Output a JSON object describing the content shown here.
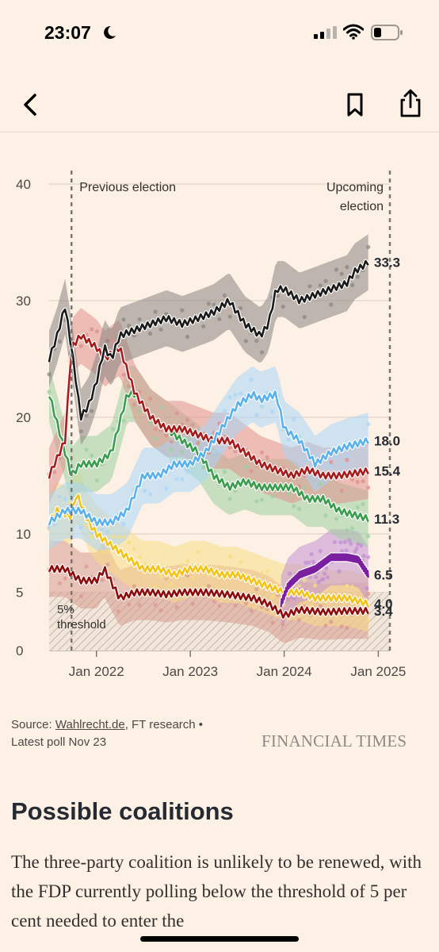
{
  "status_bar": {
    "time": "23:07"
  },
  "chart_data": {
    "type": "line",
    "y_ticks": [
      "0",
      "5",
      "10",
      "20",
      "30",
      "40"
    ],
    "y_tick_values": [
      0,
      5,
      10,
      20,
      30,
      40
    ],
    "ylim": [
      0,
      40
    ],
    "x_ticks": [
      "Jan 2022",
      "Jan 2023",
      "Jan 2024",
      "Jan 2025"
    ],
    "x_tick_dates": [
      "2022-01-01",
      "2023-01-01",
      "2024-01-01",
      "2025-01-01"
    ],
    "xlim": [
      "2021-07-01",
      "2025-02-15"
    ],
    "grid": true,
    "annotations": {
      "previous_election": "Previous election",
      "previous_election_date": "2021-09-26",
      "upcoming_election_line1": "Upcoming",
      "upcoming_election_line2": "election",
      "upcoming_election_date": "2025-02-23",
      "threshold_line1": "5%",
      "threshold_line2": "threshold",
      "threshold_value": 5
    },
    "series": [
      {
        "color": "#1a1a1a",
        "band": "#8a8580",
        "end_label": "33.3",
        "points": [
          [
            "2021-07-01",
            25
          ],
          [
            "2021-08-01",
            27
          ],
          [
            "2021-09-01",
            29.5
          ],
          [
            "2021-09-26",
            26
          ],
          [
            "2021-11-01",
            20
          ],
          [
            "2021-12-01",
            21
          ],
          [
            "2022-01-01",
            23
          ],
          [
            "2022-02-01",
            26
          ],
          [
            "2022-03-01",
            25
          ],
          [
            "2022-04-01",
            27
          ],
          [
            "2022-06-01",
            27.5
          ],
          [
            "2022-08-01",
            28
          ],
          [
            "2022-10-01",
            28.5
          ],
          [
            "2022-12-01",
            28
          ],
          [
            "2023-02-01",
            28.5
          ],
          [
            "2023-04-01",
            29
          ],
          [
            "2023-06-01",
            30
          ],
          [
            "2023-08-01",
            28
          ],
          [
            "2023-10-01",
            27
          ],
          [
            "2023-11-01",
            28
          ],
          [
            "2023-12-01",
            31
          ],
          [
            "2024-01-01",
            31
          ],
          [
            "2024-03-01",
            30
          ],
          [
            "2024-05-01",
            30.5
          ],
          [
            "2024-07-01",
            31
          ],
          [
            "2024-09-01",
            31.5
          ],
          [
            "2024-10-01",
            32.5
          ],
          [
            "2024-11-23",
            33.3
          ]
        ]
      },
      {
        "color": "#5ab1ec",
        "band": "#a9d6f5",
        "end_label": "18.0",
        "points": [
          [
            "2021-07-01",
            11
          ],
          [
            "2021-09-01",
            12
          ],
          [
            "2021-11-01",
            12
          ],
          [
            "2022-01-01",
            11
          ],
          [
            "2022-03-01",
            11
          ],
          [
            "2022-05-01",
            12
          ],
          [
            "2022-07-01",
            15
          ],
          [
            "2022-09-01",
            15
          ],
          [
            "2022-11-01",
            16
          ],
          [
            "2023-01-01",
            16
          ],
          [
            "2023-03-01",
            17
          ],
          [
            "2023-05-01",
            19
          ],
          [
            "2023-07-01",
            21
          ],
          [
            "2023-09-01",
            22
          ],
          [
            "2023-10-01",
            21.5
          ],
          [
            "2023-12-01",
            22
          ],
          [
            "2024-01-01",
            19
          ],
          [
            "2024-03-01",
            18
          ],
          [
            "2024-05-01",
            16
          ],
          [
            "2024-07-01",
            17
          ],
          [
            "2024-09-01",
            17.5
          ],
          [
            "2024-11-23",
            18.0
          ]
        ]
      },
      {
        "color": "#a61c1c",
        "band": "#df8f8c",
        "end_label": "15.4",
        "points": [
          [
            "2021-07-01",
            15
          ],
          [
            "2021-09-01",
            18
          ],
          [
            "2021-09-26",
            26
          ],
          [
            "2021-11-01",
            27
          ],
          [
            "2022-01-01",
            26
          ],
          [
            "2022-02-01",
            25
          ],
          [
            "2022-04-01",
            26
          ],
          [
            "2022-06-01",
            22
          ],
          [
            "2022-08-01",
            20
          ],
          [
            "2022-10-01",
            19
          ],
          [
            "2022-12-01",
            19
          ],
          [
            "2023-02-01",
            18.5
          ],
          [
            "2023-04-01",
            18
          ],
          [
            "2023-06-01",
            18
          ],
          [
            "2023-08-01",
            17
          ],
          [
            "2023-10-01",
            16
          ],
          [
            "2023-12-01",
            15.5
          ],
          [
            "2024-02-01",
            15
          ],
          [
            "2024-04-01",
            15.5
          ],
          [
            "2024-06-01",
            15
          ],
          [
            "2024-08-01",
            15
          ],
          [
            "2024-11-23",
            15.4
          ]
        ]
      },
      {
        "color": "#3a9d4e",
        "band": "#9ccf9f",
        "end_label": "11.3",
        "points": [
          [
            "2021-07-01",
            22
          ],
          [
            "2021-09-26",
            15
          ],
          [
            "2021-11-01",
            16
          ],
          [
            "2022-01-01",
            16
          ],
          [
            "2022-03-01",
            17
          ],
          [
            "2022-05-01",
            22
          ],
          [
            "2022-06-01",
            22
          ],
          [
            "2022-08-01",
            20
          ],
          [
            "2022-10-01",
            19
          ],
          [
            "2022-12-01",
            18
          ],
          [
            "2023-02-01",
            17
          ],
          [
            "2023-04-01",
            15
          ],
          [
            "2023-06-01",
            14
          ],
          [
            "2023-08-01",
            14.5
          ],
          [
            "2023-10-01",
            14
          ],
          [
            "2023-12-01",
            14
          ],
          [
            "2024-02-01",
            14
          ],
          [
            "2024-04-01",
            13
          ],
          [
            "2024-06-01",
            13
          ],
          [
            "2024-08-01",
            12
          ],
          [
            "2024-11-23",
            11.3
          ]
        ]
      },
      {
        "color": "#7a1fa0",
        "band": "#c28fd3",
        "end_label": "6.5",
        "points": [
          [
            "2023-12-20",
            4
          ],
          [
            "2024-01-15",
            5.5
          ],
          [
            "2024-03-01",
            6.5
          ],
          [
            "2024-05-01",
            7
          ],
          [
            "2024-07-01",
            8
          ],
          [
            "2024-09-01",
            8
          ],
          [
            "2024-10-15",
            7.8
          ],
          [
            "2024-11-23",
            6.5
          ]
        ]
      },
      {
        "color": "#f2c318",
        "band": "#f7dc85",
        "end_label": "4.0",
        "points": [
          [
            "2021-07-01",
            11
          ],
          [
            "2021-08-01",
            12
          ],
          [
            "2021-09-26",
            11.5
          ],
          [
            "2021-10-15",
            13.5
          ],
          [
            "2021-12-01",
            11
          ],
          [
            "2022-01-01",
            10
          ],
          [
            "2022-03-01",
            9
          ],
          [
            "2022-05-01",
            8
          ],
          [
            "2022-07-01",
            7
          ],
          [
            "2022-09-01",
            7
          ],
          [
            "2022-11-01",
            6.5
          ],
          [
            "2023-01-01",
            7
          ],
          [
            "2023-03-01",
            7
          ],
          [
            "2023-05-01",
            6.5
          ],
          [
            "2023-07-01",
            6.5
          ],
          [
            "2023-09-01",
            6
          ],
          [
            "2023-11-01",
            5.5
          ],
          [
            "2024-01-01",
            5
          ],
          [
            "2024-03-01",
            5
          ],
          [
            "2024-05-01",
            4.5
          ],
          [
            "2024-07-01",
            4.5
          ],
          [
            "2024-09-01",
            4.5
          ],
          [
            "2024-11-23",
            4.0
          ]
        ]
      },
      {
        "color": "#8c0d0d",
        "band": "#d99a8f",
        "end_label": "3.4",
        "points": [
          [
            "2021-07-01",
            7
          ],
          [
            "2021-09-01",
            7
          ],
          [
            "2021-11-01",
            6
          ],
          [
            "2022-01-01",
            6
          ],
          [
            "2022-02-01",
            7
          ],
          [
            "2022-04-01",
            4.5
          ],
          [
            "2022-06-01",
            5
          ],
          [
            "2022-08-01",
            5
          ],
          [
            "2022-10-01",
            4.8
          ],
          [
            "2022-12-01",
            5
          ],
          [
            "2023-03-01",
            5
          ],
          [
            "2023-06-01",
            4.8
          ],
          [
            "2023-09-01",
            4.5
          ],
          [
            "2023-11-01",
            4
          ],
          [
            "2024-01-01",
            3
          ],
          [
            "2024-03-01",
            3.5
          ],
          [
            "2024-06-01",
            3.3
          ],
          [
            "2024-09-01",
            3.4
          ],
          [
            "2024-11-23",
            3.4
          ]
        ]
      }
    ]
  },
  "source": {
    "prefix": "Source: ",
    "link": "Wahlrecht.de",
    "suffix": ", FT research •",
    "latest": "Latest poll Nov 23"
  },
  "brand": "FINANCIAL TIMES",
  "article": {
    "heading": "Possible coalitions",
    "body": "The three-party coalition is unlikely to be renewed, with the FDP currently polling below the threshold of 5 per cent needed to enter the"
  }
}
